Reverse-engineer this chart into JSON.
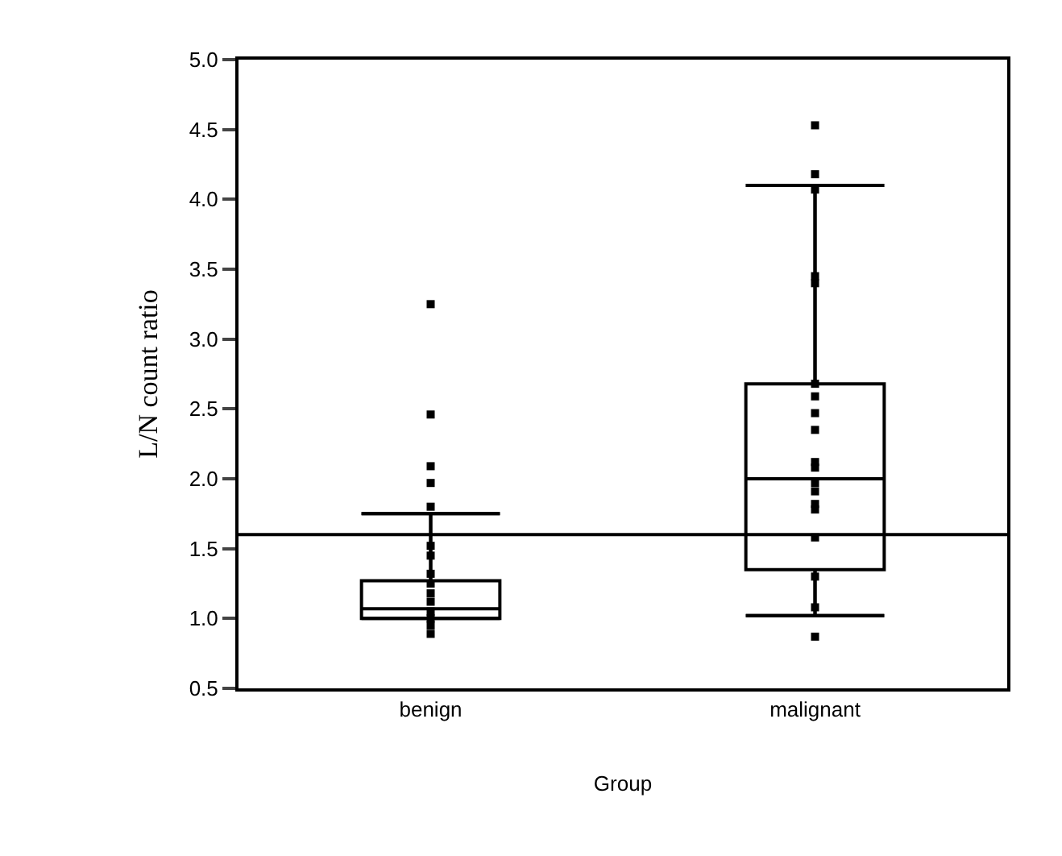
{
  "chart_data": {
    "type": "box",
    "xlabel": "Group",
    "ylabel": "L/N count ratio",
    "categories": [
      "benign",
      "malignant"
    ],
    "boxes": [
      {
        "low": 1.0,
        "q1": 1.0,
        "median": 1.07,
        "q3": 1.27,
        "high": 1.75
      },
      {
        "low": 1.02,
        "q1": 1.35,
        "median": 2.0,
        "q3": 2.68,
        "high": 4.1
      }
    ],
    "series": [
      {
        "type": "scatter",
        "color": "#000000",
        "x": [
          "benign",
          "benign",
          "benign",
          "benign",
          "benign",
          "benign",
          "benign",
          "benign",
          "benign",
          "benign",
          "benign",
          "benign",
          "benign",
          "benign",
          "benign",
          "malignant",
          "malignant",
          "malignant",
          "malignant",
          "malignant",
          "malignant",
          "malignant",
          "malignant",
          "malignant",
          "malignant",
          "malignant",
          "malignant",
          "malignant",
          "malignant",
          "malignant",
          "malignant",
          "malignant",
          "malignant",
          "malignant"
        ],
        "values": [
          3.25,
          2.46,
          2.09,
          1.97,
          1.8,
          1.52,
          1.45,
          1.32,
          1.25,
          1.18,
          1.12,
          1.05,
          1.0,
          0.95,
          0.89,
          4.53,
          4.18,
          4.07,
          3.45,
          3.4,
          2.68,
          2.59,
          2.47,
          2.35,
          2.12,
          2.08,
          1.97,
          1.91,
          1.82,
          1.78,
          1.58,
          1.3,
          1.08,
          0.87
        ]
      }
    ],
    "ref_lines": [
      {
        "axis": "y",
        "value": 1.6,
        "color": "#000000"
      }
    ],
    "ylim": [
      0.5,
      5.0
    ],
    "yticks": [
      {
        "value": 0.5,
        "label": "0.5"
      },
      {
        "value": 1.0,
        "label": "1.0"
      },
      {
        "value": 1.5,
        "label": "1.5"
      },
      {
        "value": 2.0,
        "label": "2.0"
      },
      {
        "value": 2.5,
        "label": "2.5"
      },
      {
        "value": 3.0,
        "label": "3.0"
      },
      {
        "value": 3.5,
        "label": "3.5"
      },
      {
        "value": 4.0,
        "label": "4.0"
      },
      {
        "value": 4.5,
        "label": "4.5"
      },
      {
        "value": 5.0,
        "label": "5.0"
      }
    ],
    "marker": "square"
  }
}
